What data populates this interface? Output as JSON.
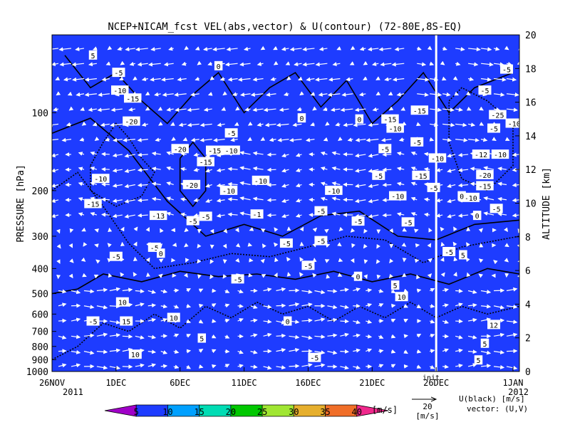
{
  "chart_data": {
    "type": "heatmap",
    "title": "NCEP+NICAM_fcst VEL(abs,vector) & U(contour)  (72-80E,8S-EQ)",
    "ylabel_left": "PRESSURE [hPa]",
    "ylabel_right": "ALTITUDE [km]",
    "x_ticks": [
      "26NOV",
      "1DEC",
      "6DEC",
      "11DEC",
      "16DEC",
      "21DEC",
      "26DEC",
      "1JAN"
    ],
    "x_year_left": "2011",
    "x_year_right": "2012",
    "x_range_days": [
      0,
      36.5
    ],
    "pressure_ticks": [
      1000,
      900,
      800,
      700,
      600,
      500,
      400,
      300,
      200,
      100
    ],
    "pressure_range": [
      1000,
      50
    ],
    "altitude_ticks": [
      0,
      2,
      4,
      6,
      8,
      10,
      12,
      14,
      16,
      18,
      20
    ],
    "altitude_range": [
      0,
      20
    ],
    "marker_label": "init",
    "forecast_start_day": 30,
    "colorbar": {
      "levels": [
        5,
        10,
        15,
        20,
        25,
        30,
        35,
        40
      ],
      "colors": [
        "#a000c8",
        "#1e3cff",
        "#00a0ff",
        "#00dcb4",
        "#00c800",
        "#a0e632",
        "#e6af2d",
        "#f06e28",
        "#f0288c"
      ],
      "unit": "[m/s]"
    },
    "vector_key": {
      "value": "20",
      "unit": "[m/s]"
    },
    "legend_lines": [
      "U(black) [m/s]",
      "vector: (U,V)"
    ],
    "contour_labels": [
      {
        "t": "5",
        "day": 3.2,
        "p": 60
      },
      {
        "t": "-5",
        "day": 5.2,
        "p": 70
      },
      {
        "t": "-10",
        "day": 5.3,
        "p": 82
      },
      {
        "t": "-15",
        "day": 6.3,
        "p": 88
      },
      {
        "t": "-20",
        "day": 6.2,
        "p": 108
      },
      {
        "t": "-20",
        "day": 10.0,
        "p": 138
      },
      {
        "t": "-15",
        "day": 12.7,
        "p": 140
      },
      {
        "t": "-15",
        "day": 12.0,
        "p": 155
      },
      {
        "t": "-10",
        "day": 14.0,
        "p": 140
      },
      {
        "t": "-5",
        "day": 14.0,
        "p": 120
      },
      {
        "t": "0",
        "day": 13.0,
        "p": 66
      },
      {
        "t": "-10",
        "day": 3.8,
        "p": 180
      },
      {
        "t": "-20",
        "day": 10.9,
        "p": 190
      },
      {
        "t": "-10",
        "day": 13.8,
        "p": 200
      },
      {
        "t": "-15",
        "day": 3.2,
        "p": 225
      },
      {
        "t": "-10",
        "day": 16.3,
        "p": 183
      },
      {
        "t": "-13",
        "day": 8.3,
        "p": 250
      },
      {
        "t": "-1",
        "day": 16.0,
        "p": 247
      },
      {
        "t": "0",
        "day": 19.5,
        "p": 105
      },
      {
        "t": "0",
        "day": 24.0,
        "p": 106
      },
      {
        "t": "-5",
        "day": 26.0,
        "p": 138
      },
      {
        "t": "-5",
        "day": 25.5,
        "p": 175
      },
      {
        "t": "-10",
        "day": 22.0,
        "p": 200
      },
      {
        "t": "-5",
        "day": 21.0,
        "p": 240
      },
      {
        "t": "-5",
        "day": 28.5,
        "p": 130
      },
      {
        "t": "-15",
        "day": 28.7,
        "p": 98
      },
      {
        "t": "-10",
        "day": 36.1,
        "p": 110
      },
      {
        "t": "-15",
        "day": 28.8,
        "p": 175
      },
      {
        "t": "-10",
        "day": 30.1,
        "p": 150
      },
      {
        "t": "-10",
        "day": 32.7,
        "p": 213
      },
      {
        "t": "-5",
        "day": 29.8,
        "p": 195
      },
      {
        "t": "-5",
        "day": 34.5,
        "p": 115
      },
      {
        "t": "-5",
        "day": 33.8,
        "p": 82
      },
      {
        "t": "-5",
        "day": 35.5,
        "p": 68
      },
      {
        "t": "-5",
        "day": 34.7,
        "p": 235
      },
      {
        "t": "-20",
        "day": 33.8,
        "p": 174
      },
      {
        "t": "-15",
        "day": 33.8,
        "p": 192
      },
      {
        "t": "-10",
        "day": 35.0,
        "p": 145
      },
      {
        "t": "0",
        "day": 33.2,
        "p": 250
      },
      {
        "t": "-12",
        "day": 33.5,
        "p": 145
      },
      {
        "t": "-15",
        "day": 26.4,
        "p": 106
      },
      {
        "t": "-10",
        "day": 26.8,
        "p": 115
      },
      {
        "t": "-25",
        "day": 34.8,
        "p": 102
      },
      {
        "t": "-5",
        "day": 27.8,
        "p": 265
      },
      {
        "t": "-10",
        "day": 27.0,
        "p": 210
      },
      {
        "t": "0",
        "day": 32.0,
        "p": 210
      },
      {
        "t": "-5",
        "day": 23.9,
        "p": 263
      },
      {
        "t": "-5",
        "day": 11.0,
        "p": 262
      },
      {
        "t": "-5",
        "day": 12.0,
        "p": 252
      },
      {
        "t": "-5",
        "day": 18.3,
        "p": 320
      },
      {
        "t": "-5",
        "day": 21.0,
        "p": 313
      },
      {
        "t": "-5",
        "day": 8.0,
        "p": 332
      },
      {
        "t": "0",
        "day": 8.5,
        "p": 350
      },
      {
        "t": "-5",
        "day": 5.0,
        "p": 360
      },
      {
        "t": "-5",
        "day": 20.0,
        "p": 390
      },
      {
        "t": "-5",
        "day": 14.5,
        "p": 440
      },
      {
        "t": "0",
        "day": 23.9,
        "p": 430
      },
      {
        "t": "5",
        "day": 26.8,
        "p": 465
      },
      {
        "t": "10",
        "day": 27.3,
        "p": 515
      },
      {
        "t": "10",
        "day": 5.5,
        "p": 540
      },
      {
        "t": "15",
        "day": 5.8,
        "p": 640
      },
      {
        "t": "-5",
        "day": 3.2,
        "p": 640
      },
      {
        "t": "10",
        "day": 9.5,
        "p": 620
      },
      {
        "t": "5",
        "day": 11.7,
        "p": 745
      },
      {
        "t": "0",
        "day": 18.4,
        "p": 640
      },
      {
        "t": "-5",
        "day": 20.5,
        "p": 885
      },
      {
        "t": "10",
        "day": 6.5,
        "p": 860
      },
      {
        "t": "-5",
        "day": 31.0,
        "p": 345
      },
      {
        "t": "5",
        "day": 32.1,
        "p": 355
      },
      {
        "t": "12",
        "day": 34.5,
        "p": 660
      },
      {
        "t": "5",
        "day": 33.8,
        "p": 780
      },
      {
        "t": "5",
        "day": 33.3,
        "p": 905
      }
    ]
  }
}
